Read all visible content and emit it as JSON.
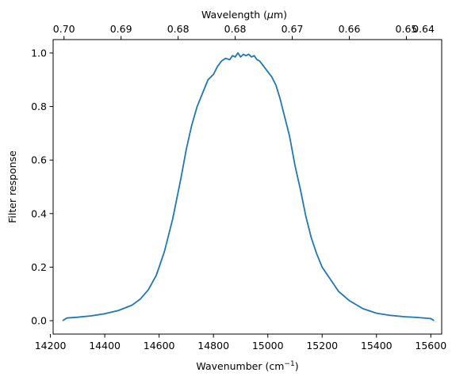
{
  "colors": {
    "series": "#1f77b4",
    "frame": "#000000"
  },
  "chart_data": {
    "type": "line",
    "title": "",
    "xlabel": "Wavenumber (cm",
    "xlabel_superscript": "−1",
    "xlabel_close": ")",
    "ylabel": "Filter response",
    "x2label_prefix": "Wavelength (",
    "x2label_symbol": "μ",
    "x2label_suffix": "m)",
    "grid": false,
    "legend": "none",
    "xlim": [
      14210,
      15640
    ],
    "ylim": [
      -0.05,
      1.05
    ],
    "x_ticks": [
      14200,
      14400,
      14600,
      14800,
      15000,
      15200,
      15400,
      15600
    ],
    "x_tick_labels": [
      "14200",
      "14400",
      "14600",
      "14800",
      "15000",
      "15200",
      "15400",
      "15600"
    ],
    "y_ticks": [
      0.0,
      0.2,
      0.4,
      0.6,
      0.8,
      1.0
    ],
    "y_tick_labels": [
      "0.0",
      "0.2",
      "0.4",
      "0.6",
      "0.8",
      "1.0"
    ],
    "top_axis": {
      "label_positions_wavenumber": [
        14250,
        14460,
        14670,
        14880,
        15090,
        15300,
        15510,
        15740
      ],
      "labels": [
        "0.70",
        "0.69",
        "0.68",
        "0.68",
        "0.67",
        "0.66",
        "0.65",
        "0.64"
      ]
    },
    "series": [
      {
        "x": [
          14245,
          14260,
          14300,
          14350,
          14400,
          14450,
          14500,
          14530,
          14560,
          14590,
          14620,
          14650,
          14680,
          14700,
          14720,
          14740,
          14760,
          14780,
          14800,
          14815,
          14830,
          14845,
          14860,
          14870,
          14880,
          14890,
          14900,
          14910,
          14920,
          14930,
          14940,
          14950,
          14960,
          14970,
          14985,
          15000,
          15015,
          15030,
          15045,
          15060,
          15080,
          15100,
          15120,
          15140,
          15160,
          15180,
          15200,
          15230,
          15260,
          15300,
          15350,
          15400,
          15450,
          15500,
          15550,
          15600,
          15612
        ],
        "y": [
          0.0,
          0.01,
          0.013,
          0.018,
          0.026,
          0.038,
          0.058,
          0.08,
          0.115,
          0.17,
          0.26,
          0.38,
          0.53,
          0.64,
          0.73,
          0.8,
          0.85,
          0.9,
          0.92,
          0.95,
          0.97,
          0.98,
          0.975,
          0.99,
          0.985,
          1.0,
          0.985,
          0.995,
          0.99,
          0.995,
          0.985,
          0.99,
          0.975,
          0.97,
          0.95,
          0.93,
          0.91,
          0.88,
          0.83,
          0.77,
          0.69,
          0.58,
          0.49,
          0.39,
          0.31,
          0.25,
          0.2,
          0.155,
          0.11,
          0.075,
          0.045,
          0.028,
          0.02,
          0.015,
          0.012,
          0.008,
          0.0
        ]
      }
    ]
  }
}
